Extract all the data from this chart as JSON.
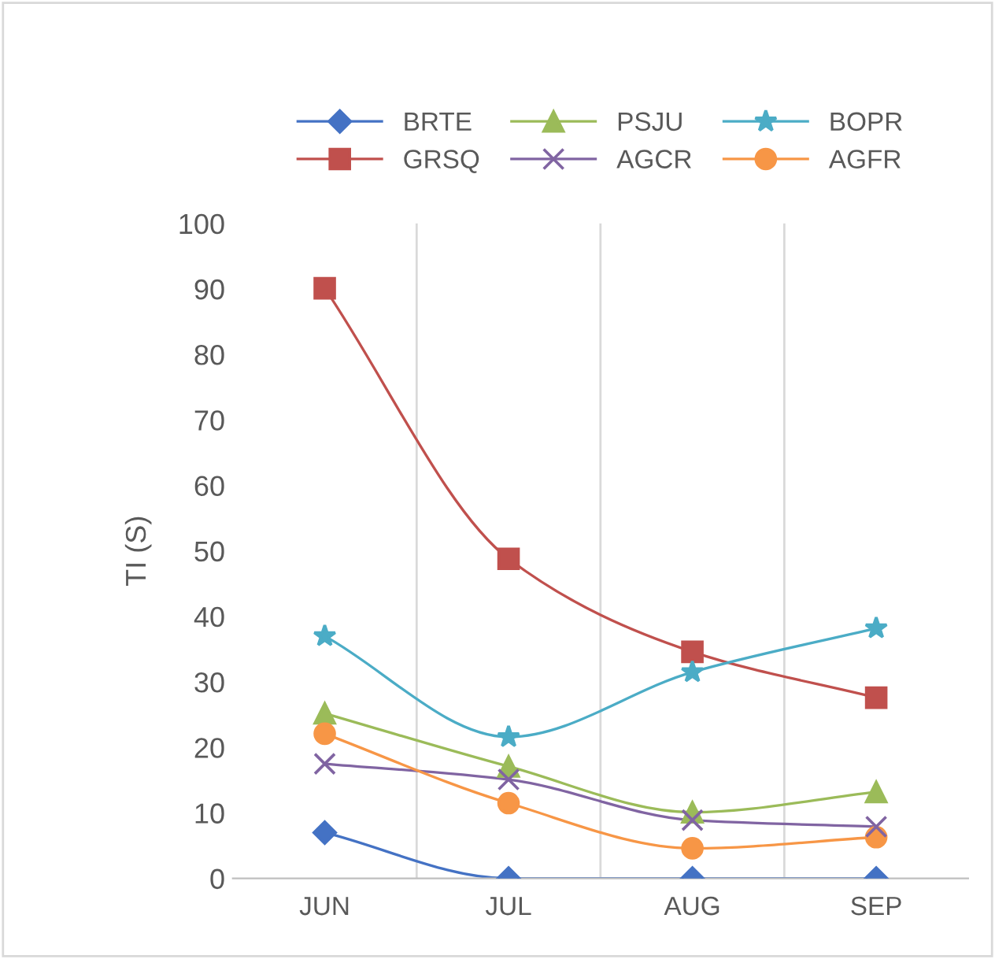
{
  "chart_data": {
    "type": "line",
    "ylabel": "TI (S)",
    "categories": [
      "JUN",
      "JUL",
      "AUG",
      "SEP"
    ],
    "ylim": [
      0,
      100
    ],
    "yticks": [
      0,
      10,
      20,
      30,
      40,
      50,
      60,
      70,
      80,
      90,
      100
    ],
    "grid": "x",
    "legend": "top",
    "line_style": "solid",
    "series": [
      {
        "name": "BRTE",
        "color": "#4472c4",
        "marker": "diamond",
        "values": [
          7,
          0,
          0,
          0
        ]
      },
      {
        "name": "GRSQ",
        "color": "#c0504d",
        "marker": "square",
        "values": [
          90.1,
          48.8,
          34.6,
          27.6
        ]
      },
      {
        "name": "PSJU",
        "color": "#9bbb59",
        "marker": "triangle",
        "values": [
          25.2,
          17.1,
          10.1,
          13.2
        ]
      },
      {
        "name": "AGCR",
        "color": "#8064a2",
        "marker": "cross",
        "values": [
          17.5,
          15.1,
          8.9,
          7.9
        ]
      },
      {
        "name": "BOPR",
        "color": "#4bacc6",
        "marker": "star",
        "values": [
          37,
          21.6,
          31.5,
          38.2
        ]
      },
      {
        "name": "AGFR",
        "color": "#f79646",
        "marker": "circle",
        "values": [
          22.1,
          11.5,
          4.6,
          6.3
        ]
      }
    ]
  }
}
